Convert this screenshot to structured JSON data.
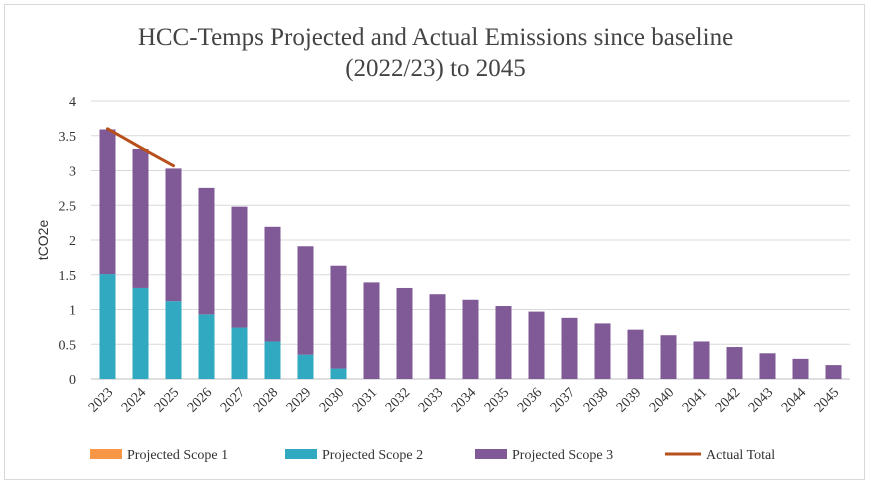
{
  "chart_data": {
    "type": "bar",
    "title": "HCC-Temps Projected and Actual Emissions since baseline (2022/23) to 2045",
    "title_lines": [
      "HCC-Temps Projected and Actual Emissions since baseline",
      "(2022/23) to 2045"
    ],
    "ylabel": "tCO2e",
    "xlabel": "",
    "ylim": [
      0,
      4
    ],
    "yticks": [
      "0",
      "0.5",
      "1",
      "1.5",
      "2",
      "2.5",
      "3",
      "3.5",
      "4"
    ],
    "grid": true,
    "stacked": true,
    "legend_position": "bottom",
    "categories": [
      "2023",
      "2024",
      "2025",
      "2026",
      "2027",
      "2028",
      "2029",
      "2030",
      "2031",
      "2032",
      "2033",
      "2034",
      "2035",
      "2036",
      "2037",
      "2038",
      "2039",
      "2040",
      "2041",
      "2042",
      "2043",
      "2044",
      "2045"
    ],
    "series": [
      {
        "name": "Projected Scope 1",
        "kind": "bar",
        "color": "#f79646",
        "values": [
          0,
          0,
          0,
          0,
          0,
          0,
          0,
          0,
          0,
          0,
          0,
          0,
          0,
          0,
          0,
          0,
          0,
          0,
          0,
          0,
          0,
          0,
          0
        ]
      },
      {
        "name": "Projected Scope 2",
        "kind": "bar",
        "color": "#31a9c0",
        "values": [
          1.51,
          1.31,
          1.12,
          0.93,
          0.74,
          0.54,
          0.35,
          0.15,
          0,
          0,
          0,
          0,
          0,
          0,
          0,
          0,
          0,
          0,
          0,
          0,
          0,
          0,
          0
        ]
      },
      {
        "name": "Projected  Scope 3",
        "kind": "bar",
        "color": "#7f5a97",
        "values": [
          2.08,
          2.0,
          1.91,
          1.82,
          1.74,
          1.65,
          1.56,
          1.48,
          1.39,
          1.31,
          1.22,
          1.14,
          1.05,
          0.97,
          0.88,
          0.8,
          0.71,
          0.63,
          0.54,
          0.46,
          0.37,
          0.29,
          0.2
        ]
      },
      {
        "name": "Actual Total",
        "kind": "line",
        "color": "#b7501c",
        "x": [
          "2023",
          "2024",
          "2025"
        ],
        "values": [
          3.6,
          3.33,
          3.07
        ]
      }
    ]
  }
}
